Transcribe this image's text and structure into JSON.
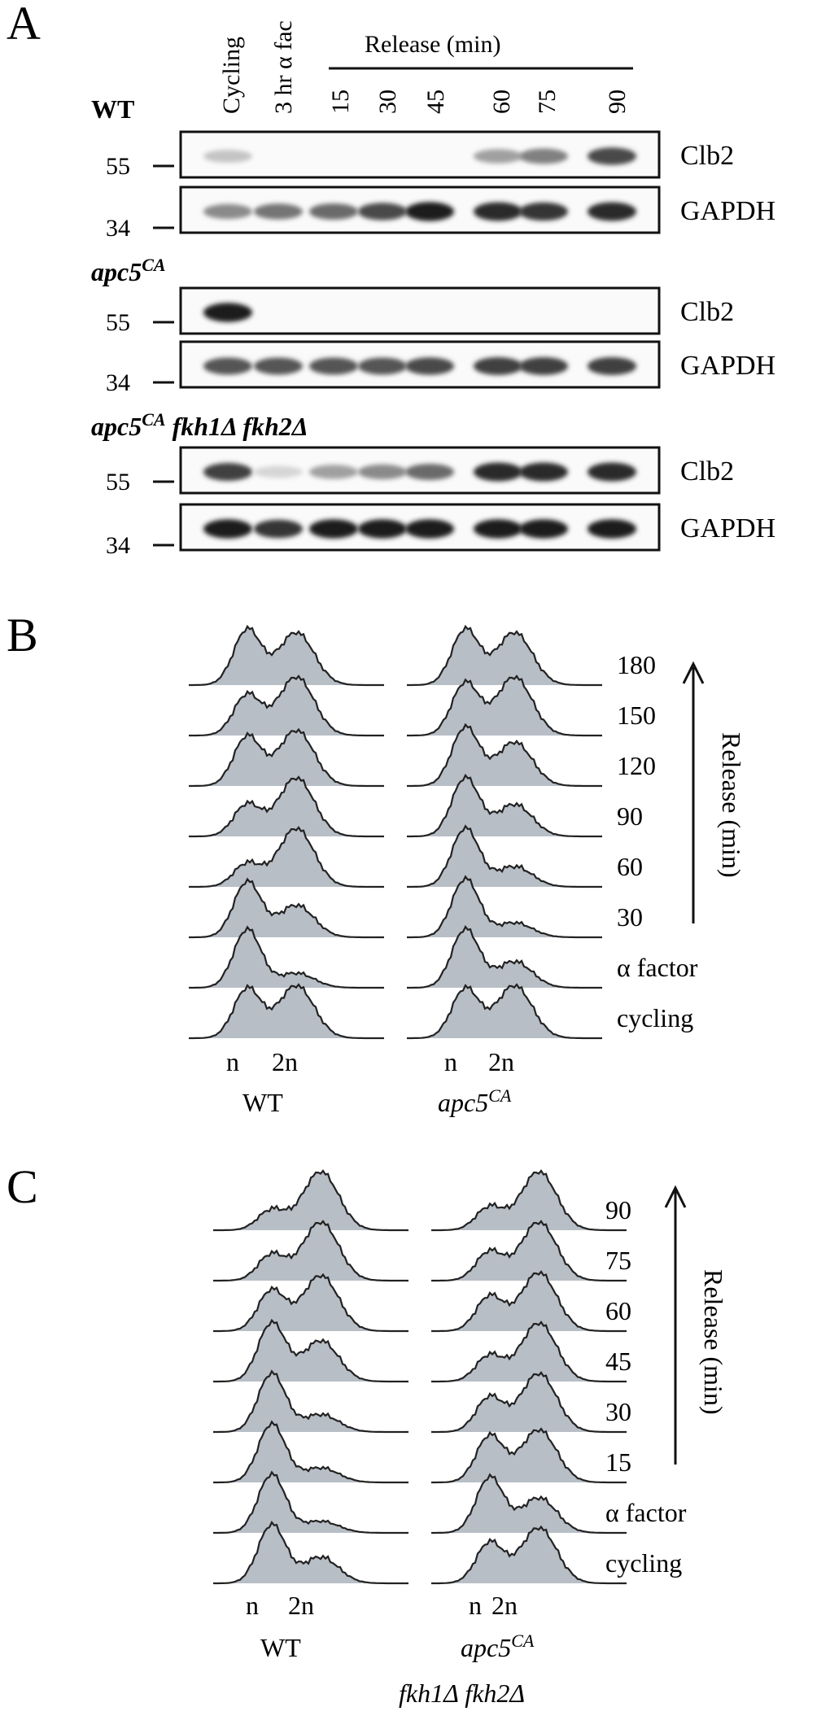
{
  "figure": {
    "panels": [
      "A",
      "B",
      "C"
    ]
  },
  "panelA": {
    "lanes": [
      "Cycling",
      "3 hr α fac",
      "15",
      "30",
      "45",
      "60",
      "75",
      "90"
    ],
    "release_header": "Release (min)",
    "markers": [
      "55",
      "34"
    ],
    "proteins": [
      "Clb2",
      "GAPDH"
    ],
    "strains": [
      {
        "name": "WT",
        "sup": "",
        "rest": ""
      },
      {
        "name": "apc5",
        "sup": "CA",
        "rest": ""
      },
      {
        "name": "apc5",
        "sup": "CA",
        "rest": " fkh1Δ fkh2Δ"
      }
    ],
    "bands": [
      {
        "protein": "Clb2",
        "intensity": [
          0.18,
          0,
          0,
          0,
          0,
          0.35,
          0.5,
          0.75
        ]
      },
      {
        "protein": "GAPDH",
        "intensity": [
          0.45,
          0.55,
          0.6,
          0.75,
          0.95,
          0.9,
          0.85,
          0.9
        ]
      },
      {
        "protein": "Clb2",
        "intensity": [
          0.95,
          0,
          0,
          0,
          0,
          0,
          0,
          0
        ]
      },
      {
        "protein": "GAPDH",
        "intensity": [
          0.7,
          0.7,
          0.7,
          0.7,
          0.75,
          0.8,
          0.8,
          0.8
        ]
      },
      {
        "protein": "Clb2",
        "intensity": [
          0.8,
          0.1,
          0.35,
          0.45,
          0.6,
          0.9,
          0.9,
          0.9
        ]
      },
      {
        "protein": "GAPDH",
        "intensity": [
          0.95,
          0.85,
          0.95,
          0.95,
          0.95,
          0.95,
          0.95,
          0.95
        ]
      }
    ]
  },
  "panelB": {
    "timepoints": [
      "180",
      "150",
      "120",
      "90",
      "60",
      "30",
      "α factor",
      "cycling"
    ],
    "axis_label": "Release (min)",
    "ticks": [
      "n",
      "2n"
    ],
    "strains": [
      "WT",
      "apc5",
      "CA"
    ]
  },
  "panelC": {
    "timepoints": [
      "90",
      "75",
      "60",
      "45",
      "30",
      "15",
      "α factor",
      "cycling"
    ],
    "axis_label": "Release (min)",
    "ticks": [
      "n",
      "2n"
    ],
    "strains": [
      "WT",
      "apc5",
      "CA",
      "fkh1Δ fkh2Δ"
    ]
  },
  "colors": {
    "histogram_fill": "#b8bec6",
    "histogram_line": "#222222",
    "blot_dark": "#1a1a1a"
  }
}
